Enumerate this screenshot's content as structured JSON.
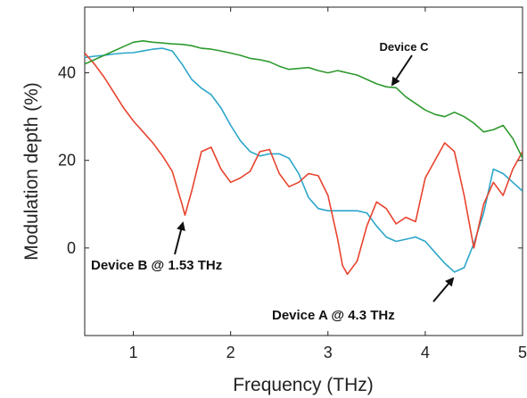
{
  "chart_data": {
    "type": "line",
    "title": "",
    "xlabel": "Frequency (THz)",
    "ylabel": "Modulation depth (%)",
    "xlim": [
      0.5,
      5
    ],
    "ylim": [
      -20,
      55
    ],
    "xticks": [
      1,
      2,
      3,
      4,
      5
    ],
    "yticks": [
      0,
      20,
      40
    ],
    "grid": false,
    "series": [
      {
        "color": "#2ba6c9",
        "x": [
          0.5,
          0.6,
          0.7,
          0.8,
          0.9,
          1.0,
          1.1,
          1.2,
          1.3,
          1.4,
          1.5,
          1.6,
          1.7,
          1.8,
          1.9,
          2.0,
          2.1,
          2.2,
          2.3,
          2.4,
          2.5,
          2.6,
          2.7,
          2.8,
          2.9,
          3.0,
          3.1,
          3.2,
          3.3,
          3.4,
          3.5,
          3.6,
          3.7,
          3.8,
          3.9,
          4.0,
          4.1,
          4.2,
          4.3,
          4.4,
          4.5,
          4.6,
          4.7,
          4.8,
          4.9,
          5.0
        ],
        "y": [
          43.5,
          43.8,
          44.0,
          44.3,
          44.5,
          44.6,
          45.0,
          45.4,
          45.6,
          45.0,
          42.0,
          38.5,
          36.5,
          35.0,
          32.0,
          28.0,
          24.5,
          22.0,
          21.0,
          21.5,
          21.5,
          20.5,
          17.0,
          11.5,
          9.0,
          8.5,
          8.5,
          8.5,
          8.5,
          8.0,
          5.0,
          2.5,
          1.5,
          2.0,
          2.5,
          1.5,
          -1.0,
          -3.5,
          -5.5,
          -4.5,
          1.0,
          8.0,
          18.0,
          17.0,
          15.0,
          13.0
        ]
      },
      {
        "color": "#e8432e",
        "x": [
          0.5,
          0.6,
          0.7,
          0.8,
          0.9,
          1.0,
          1.1,
          1.2,
          1.3,
          1.4,
          1.5,
          1.53,
          1.6,
          1.7,
          1.8,
          1.9,
          2.0,
          2.1,
          2.2,
          2.3,
          2.4,
          2.5,
          2.6,
          2.7,
          2.8,
          2.9,
          3.0,
          3.1,
          3.15,
          3.2,
          3.3,
          3.4,
          3.5,
          3.6,
          3.7,
          3.8,
          3.9,
          4.0,
          4.1,
          4.2,
          4.3,
          4.4,
          4.5,
          4.6,
          4.7,
          4.8,
          4.9,
          5.0
        ],
        "y": [
          44.5,
          42.0,
          39.0,
          35.5,
          32.0,
          29.0,
          26.5,
          24.0,
          21.0,
          17.5,
          10.0,
          7.5,
          13.0,
          22.0,
          23.0,
          18.0,
          15.0,
          16.0,
          17.5,
          22.0,
          22.5,
          17.0,
          14.0,
          15.0,
          17.0,
          16.5,
          12.0,
          2.0,
          -4.0,
          -6.0,
          -3.0,
          5.0,
          10.5,
          9.0,
          5.5,
          7.0,
          6.0,
          16.0,
          20.0,
          24.0,
          22.0,
          12.0,
          0.0,
          10.0,
          15.0,
          12.0,
          18.0,
          22.0
        ]
      },
      {
        "color": "#2e9a2e",
        "x": [
          0.5,
          0.6,
          0.7,
          0.8,
          0.9,
          1.0,
          1.1,
          1.2,
          1.3,
          1.4,
          1.5,
          1.6,
          1.7,
          1.8,
          1.9,
          2.0,
          2.1,
          2.2,
          2.3,
          2.4,
          2.5,
          2.6,
          2.7,
          2.8,
          2.9,
          3.0,
          3.1,
          3.2,
          3.3,
          3.4,
          3.5,
          3.6,
          3.7,
          3.8,
          3.9,
          4.0,
          4.1,
          4.2,
          4.3,
          4.4,
          4.5,
          4.6,
          4.7,
          4.8,
          4.9,
          5.0
        ],
        "y": [
          42.0,
          43.0,
          44.0,
          45.0,
          46.0,
          47.0,
          47.3,
          47.0,
          46.8,
          46.6,
          46.5,
          46.2,
          45.6,
          45.4,
          45.0,
          44.5,
          44.0,
          43.3,
          43.0,
          42.5,
          41.5,
          40.8,
          41.0,
          41.2,
          40.5,
          40.0,
          40.5,
          40.0,
          39.5,
          38.5,
          37.5,
          36.8,
          36.6,
          34.5,
          33.0,
          31.5,
          30.5,
          30.0,
          31.0,
          30.0,
          28.5,
          26.5,
          27.0,
          28.0,
          25.0,
          20.5
        ]
      }
    ],
    "annotations": [
      {
        "text": "Device C",
        "x": 3.6,
        "y": 36.5
      },
      {
        "text": "Device B @ 1.53 THz",
        "x": 1.53,
        "y": 7.5
      },
      {
        "text": "Device A @ 4.3 THz",
        "x": 4.3,
        "y": -5.5
      }
    ]
  }
}
